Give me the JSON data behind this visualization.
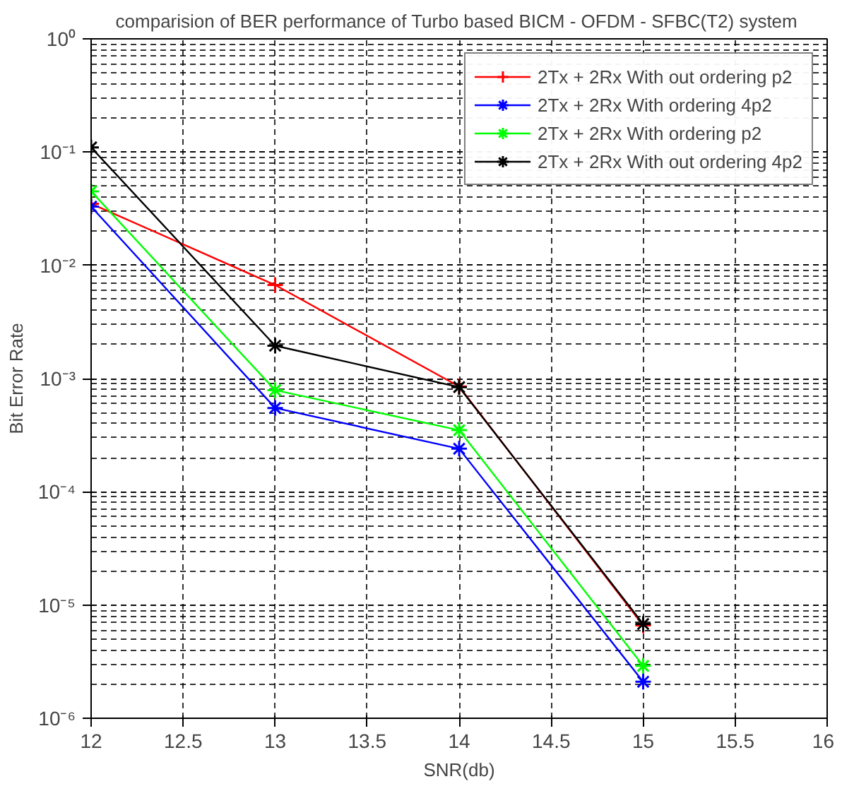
{
  "chart_data": {
    "type": "line",
    "title": "comparision of BER performance of  Turbo based BICM - OFDM - SFBC(T2) system",
    "xlabel": "SNR(db)",
    "ylabel": "Bit Error Rate",
    "x": [
      12,
      13,
      14,
      15
    ],
    "series": [
      {
        "name": "2Tx + 2Rx With out ordering p2",
        "color": "#ff0000",
        "marker": "cross",
        "values": [
          0.035,
          0.0067,
          0.00085,
          6.6e-06
        ]
      },
      {
        "name": "2Tx + 2Rx With ordering 4p2",
        "color": "#0000ff",
        "marker": "cross",
        "values": [
          0.033,
          0.00055,
          0.00024,
          2.1e-06
        ]
      },
      {
        "name": "2Tx + 2Rx With ordering p2",
        "color": "#00ff00",
        "marker": "cross",
        "values": [
          0.045,
          0.00079,
          0.00035,
          2.9e-06
        ]
      },
      {
        "name": "2Tx + 2Rx With out ordering 4p2",
        "color": "#000000",
        "marker": "cross",
        "values": [
          0.11,
          0.00195,
          0.00084,
          6.8e-06
        ]
      }
    ],
    "log": "y",
    "xlim": [
      12,
      16
    ],
    "ylim": [
      1e-06,
      1
    ],
    "xticks": [
      12,
      12.5,
      13,
      13.5,
      14,
      14.5,
      15,
      15.5,
      16
    ],
    "yticks": [
      {
        "value": 1e-06,
        "label": "10⁻⁶"
      },
      {
        "value": 1e-05,
        "label": "10⁻⁵"
      },
      {
        "value": 0.0001,
        "label": "10⁻⁴"
      },
      {
        "value": 0.001,
        "label": "10⁻³"
      },
      {
        "value": 0.01,
        "label": "10⁻²"
      },
      {
        "value": 0.1,
        "label": "10⁻¹"
      },
      {
        "value": 1,
        "label": "10⁰"
      }
    ],
    "grid": true,
    "legend": "top right",
    "line_style": "solid"
  }
}
